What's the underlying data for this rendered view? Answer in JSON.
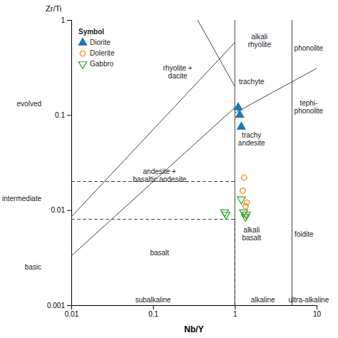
{
  "chart_data": {
    "type": "scatter",
    "x_label": "Nb/Y",
    "y_label": "Zr/Ti",
    "log": true,
    "grid": false,
    "xlim": [
      0.01,
      10
    ],
    "ylim": [
      0.001,
      1
    ],
    "xticks": [
      0.01,
      0.1,
      1,
      10
    ],
    "yticks": [
      0.001,
      0.01,
      0.1,
      1
    ],
    "legend": "upper left",
    "legend_title": "Symbol",
    "series": [
      {
        "name": "Diorite",
        "marker": "triangle-up",
        "x": [
          1.1,
          1.15,
          1.2
        ],
        "values": [
          0.12,
          0.1,
          0.075
        ]
      },
      {
        "name": "Dolerite",
        "marker": "circle-open",
        "x": [
          1.3,
          1.35,
          1.4,
          1.25,
          1.32
        ],
        "values": [
          0.022,
          0.011,
          0.012,
          0.016,
          0.009
        ]
      },
      {
        "name": "Gabbro",
        "marker": "triangle-down-open",
        "x": [
          0.75,
          0.78,
          1.2,
          1.28,
          1.35,
          1.38
        ],
        "values": [
          0.0095,
          0.009,
          0.013,
          0.0095,
          0.0085,
          0.009
        ]
      }
    ],
    "lines": [
      {
        "x": [
          0.01,
          1.0
        ],
        "y": [
          0.0085,
          0.58
        ],
        "line_style": "solid"
      },
      {
        "x": [
          0.01,
          1.0
        ],
        "y": [
          0.0033,
          0.12
        ],
        "line_style": "solid"
      },
      {
        "x": [
          1.0,
          1.0
        ],
        "y": [
          0.001,
          1
        ],
        "line_style": "solid"
      },
      {
        "x": [
          5.0,
          5.0
        ],
        "y": [
          0.001,
          1
        ],
        "line_style": "solid"
      },
      {
        "x": [
          0.35,
          1.0
        ],
        "y": [
          1.0,
          0.2
        ],
        "line_style": "solid"
      },
      {
        "x": [
          1.0,
          10.0
        ],
        "y": [
          0.105,
          0.31
        ],
        "line_style": "solid"
      },
      {
        "x": [
          0.01,
          1.0
        ],
        "y": [
          0.02,
          0.02
        ],
        "line_style": "dashed"
      },
      {
        "x": [
          0.01,
          1.0
        ],
        "y": [
          0.008,
          0.008
        ],
        "line_style": "dashed"
      },
      {
        "x": [
          1.0,
          1.0
        ],
        "y": [
          0.001,
          0.0082
        ],
        "line_style": "dashed"
      },
      {
        "x": [
          5.0,
          5.0
        ],
        "y": [
          0.001,
          0.0082
        ],
        "line_style": "dashed"
      }
    ],
    "field_labels": [
      {
        "text": "alkali\nrhyolite",
        "x": 2.0,
        "y": 0.6
      },
      {
        "text": "phonolite",
        "x": 8.0,
        "y": 0.5
      },
      {
        "text": "rhyolite +\ndacite",
        "x": 0.2,
        "y": 0.28
      },
      {
        "text": "trachyte",
        "x": 1.6,
        "y": 0.22
      },
      {
        "text": "tephi-\nphonolite",
        "x": 8.0,
        "y": 0.12
      },
      {
        "text": "trachy\nandesite",
        "x": 1.6,
        "y": 0.055
      },
      {
        "text": "andesite +\nbasaltic andesite",
        "x": 0.12,
        "y": 0.023
      },
      {
        "text": "basalt",
        "x": 0.12,
        "y": 0.0035
      },
      {
        "text": "alkali\nbasalt",
        "x": 1.6,
        "y": 0.0055
      },
      {
        "text": "foidite",
        "x": 7.0,
        "y": 0.0055
      }
    ],
    "side_labels": [
      {
        "text": "evolved",
        "x": 0.01,
        "y": 0.13
      },
      {
        "text": "intermediate",
        "x": 0.01,
        "y": 0.013
      },
      {
        "text": "basic",
        "x": 0.01,
        "y": 0.0025
      }
    ],
    "bottom_labels": [
      {
        "text": "subalkaline",
        "x": 0.1,
        "y": 0.001
      },
      {
        "text": "alkaline",
        "x": 2.2,
        "y": 0.001
      },
      {
        "text": "ultra-alkaline",
        "x": 8.0,
        "y": 0.001
      }
    ]
  }
}
